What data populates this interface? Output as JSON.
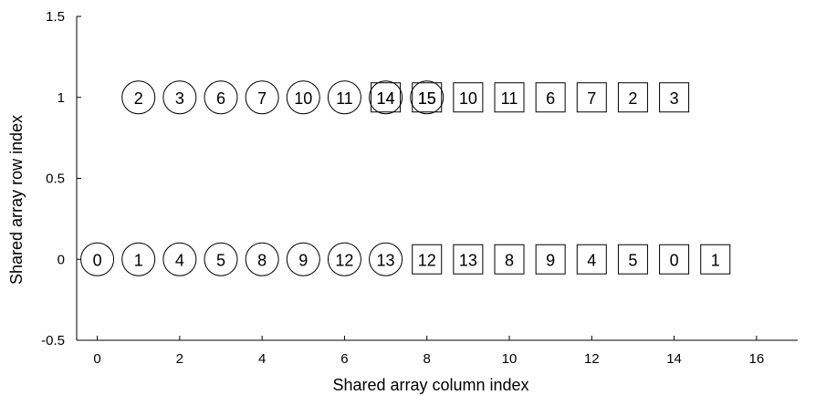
{
  "chart_data": {
    "type": "scatter",
    "title": "",
    "xlabel": "Shared array column index",
    "ylabel": "Shared array row index",
    "xlim": [
      -0.5,
      17
    ],
    "ylim": [
      -0.5,
      1.5
    ],
    "xticks": [
      "0",
      "2",
      "4",
      "6",
      "8",
      "10",
      "12",
      "14",
      "16"
    ],
    "yticks": [
      "-0.5",
      "0",
      "0.5",
      "1",
      "1.5"
    ],
    "grid": false,
    "legend": "none",
    "series": [
      {
        "marker": "circle",
        "points": [
          {
            "x": 0,
            "y": 0,
            "label": "0"
          },
          {
            "x": 1,
            "y": 0,
            "label": "1"
          },
          {
            "x": 2,
            "y": 0,
            "label": "4"
          },
          {
            "x": 3,
            "y": 0,
            "label": "5"
          },
          {
            "x": 4,
            "y": 0,
            "label": "8"
          },
          {
            "x": 5,
            "y": 0,
            "label": "9"
          },
          {
            "x": 6,
            "y": 0,
            "label": "12"
          },
          {
            "x": 7,
            "y": 0,
            "label": "13"
          },
          {
            "x": 1,
            "y": 1,
            "label": "2"
          },
          {
            "x": 2,
            "y": 1,
            "label": "3"
          },
          {
            "x": 3,
            "y": 1,
            "label": "6"
          },
          {
            "x": 4,
            "y": 1,
            "label": "7"
          },
          {
            "x": 5,
            "y": 1,
            "label": "10"
          },
          {
            "x": 6,
            "y": 1,
            "label": "11"
          },
          {
            "x": 7,
            "y": 1,
            "label": "14"
          },
          {
            "x": 8,
            "y": 1,
            "label": "15"
          }
        ]
      },
      {
        "marker": "square",
        "points": [
          {
            "x": 8,
            "y": 0,
            "label": "12"
          },
          {
            "x": 9,
            "y": 0,
            "label": "13"
          },
          {
            "x": 10,
            "y": 0,
            "label": "8"
          },
          {
            "x": 11,
            "y": 0,
            "label": "9"
          },
          {
            "x": 12,
            "y": 0,
            "label": "4"
          },
          {
            "x": 13,
            "y": 0,
            "label": "5"
          },
          {
            "x": 14,
            "y": 0,
            "label": "0"
          },
          {
            "x": 15,
            "y": 0,
            "label": "1"
          },
          {
            "x": 7,
            "y": 1,
            "label": "14"
          },
          {
            "x": 8,
            "y": 1,
            "label": "15"
          },
          {
            "x": 9,
            "y": 1,
            "label": "10"
          },
          {
            "x": 10,
            "y": 1,
            "label": "11"
          },
          {
            "x": 11,
            "y": 1,
            "label": "6"
          },
          {
            "x": 12,
            "y": 1,
            "label": "7"
          },
          {
            "x": 13,
            "y": 1,
            "label": "2"
          },
          {
            "x": 14,
            "y": 1,
            "label": "3"
          }
        ]
      }
    ]
  }
}
